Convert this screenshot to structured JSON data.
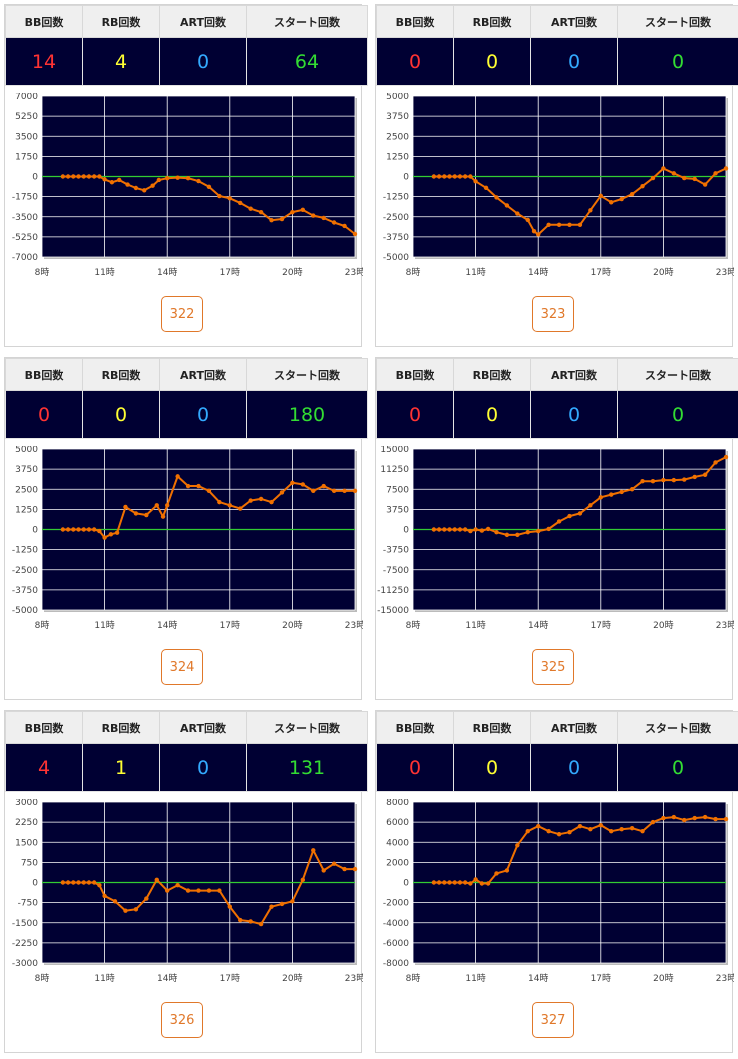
{
  "headers": {
    "bb": "BB回数",
    "rb": "RB回数",
    "art": "ART回数",
    "start": "スタート回数"
  },
  "colors": {
    "bb": "#ff3333",
    "rb": "#ffff33",
    "art": "#33aaff",
    "start": "#33dd33",
    "plot_bg": "#000033",
    "line": "#f07000",
    "zero_line": "#33cc33",
    "button": "#e0782a"
  },
  "machines": [
    {
      "number": "322",
      "bb": "14",
      "rb": "4",
      "art": "0",
      "start": "64",
      "chart_data": {
        "type": "line",
        "y_ticks": [
          "7000",
          "5250",
          "3500",
          "1750",
          "0",
          "-1750",
          "-3500",
          "-5250",
          "-7000"
        ],
        "x_ticks": [
          "8時",
          "11時",
          "14時",
          "17時",
          "20時",
          "23時"
        ],
        "ylim": [
          -7000,
          7000
        ],
        "xlim": [
          8,
          23
        ],
        "x": [
          9,
          9.25,
          9.5,
          9.75,
          10,
          10.25,
          10.5,
          10.75,
          11,
          11.35,
          11.7,
          12.1,
          12.5,
          12.9,
          13.3,
          13.6,
          14,
          14.5,
          15,
          15.5,
          16,
          16.5,
          17,
          17.5,
          18,
          18.5,
          19,
          19.5,
          20,
          20.5,
          21,
          21.5,
          22,
          22.5,
          23
        ],
        "y": [
          0,
          0,
          0,
          0,
          0,
          0,
          0,
          0,
          -250,
          -500,
          -300,
          -700,
          -1000,
          -1200,
          -800,
          -300,
          -150,
          -100,
          -150,
          -400,
          -900,
          -1700,
          -1900,
          -2300,
          -2800,
          -3100,
          -3800,
          -3700,
          -3100,
          -2900,
          -3400,
          -3600,
          -4000,
          -4300,
          -5000
        ],
        "grid": true,
        "legend": "none"
      }
    },
    {
      "number": "323",
      "bb": "0",
      "rb": "0",
      "art": "0",
      "start": "0",
      "chart_data": {
        "type": "line",
        "y_ticks": [
          "5000",
          "3750",
          "2500",
          "1250",
          "0",
          "-1250",
          "-2500",
          "-3750",
          "-5000"
        ],
        "x_ticks": [
          "8時",
          "11時",
          "14時",
          "17時",
          "20時",
          "23時"
        ],
        "ylim": [
          -5000,
          5000
        ],
        "xlim": [
          8,
          23
        ],
        "x": [
          9,
          9.25,
          9.5,
          9.75,
          10,
          10.25,
          10.5,
          10.75,
          11,
          11.5,
          12,
          12.5,
          13,
          13.5,
          13.8,
          14,
          14.5,
          15,
          15.5,
          16,
          16.5,
          17,
          17.5,
          18,
          18.5,
          19,
          19.5,
          20,
          20.5,
          21,
          21.5,
          22,
          22.5,
          23
        ],
        "y": [
          0,
          0,
          0,
          0,
          0,
          0,
          0,
          0,
          -300,
          -700,
          -1300,
          -1800,
          -2300,
          -2700,
          -3400,
          -3600,
          -3000,
          -3000,
          -3000,
          -3000,
          -2100,
          -1200,
          -1600,
          -1400,
          -1100,
          -600,
          -100,
          500,
          200,
          -100,
          -150,
          -500,
          200,
          500
        ],
        "grid": true,
        "legend": "none"
      }
    },
    {
      "number": "324",
      "bb": "0",
      "rb": "0",
      "art": "0",
      "start": "180",
      "chart_data": {
        "type": "line",
        "y_ticks": [
          "5000",
          "3750",
          "2500",
          "1250",
          "0",
          "-1250",
          "-2500",
          "-3750",
          "-5000"
        ],
        "x_ticks": [
          "8時",
          "11時",
          "14時",
          "17時",
          "20時",
          "23時"
        ],
        "ylim": [
          -5000,
          5000
        ],
        "xlim": [
          8,
          23
        ],
        "x": [
          9,
          9.25,
          9.5,
          9.75,
          10,
          10.25,
          10.5,
          10.75,
          11,
          11.3,
          11.6,
          12,
          12.5,
          13,
          13.5,
          13.8,
          14,
          14.5,
          15,
          15.5,
          16,
          16.5,
          17,
          17.5,
          18,
          18.5,
          19,
          19.5,
          20,
          20.5,
          21,
          21.5,
          22,
          22.5,
          23
        ],
        "y": [
          0,
          0,
          0,
          0,
          0,
          0,
          0,
          -100,
          -500,
          -300,
          -200,
          1400,
          1000,
          900,
          1500,
          800,
          1500,
          3300,
          2700,
          2700,
          2400,
          1700,
          1500,
          1300,
          1800,
          1900,
          1700,
          2300,
          2900,
          2800,
          2400,
          2700,
          2400,
          2400,
          2400
        ],
        "grid": true,
        "legend": "none"
      }
    },
    {
      "number": "325",
      "bb": "0",
      "rb": "0",
      "art": "0",
      "start": "0",
      "chart_data": {
        "type": "line",
        "y_ticks": [
          "15000",
          "11250",
          "7500",
          "3750",
          "0",
          "-3750",
          "-7500",
          "-11250",
          "-15000"
        ],
        "x_ticks": [
          "8時",
          "11時",
          "14時",
          "17時",
          "20時",
          "23時"
        ],
        "ylim": [
          -15000,
          15000
        ],
        "xlim": [
          8,
          23
        ],
        "x": [
          9,
          9.25,
          9.5,
          9.75,
          10,
          10.25,
          10.5,
          10.75,
          11,
          11.3,
          11.6,
          12,
          12.5,
          13,
          13.5,
          14,
          14.5,
          15,
          15.5,
          16,
          16.5,
          17,
          17.5,
          18,
          18.5,
          19,
          19.5,
          20,
          20.5,
          21,
          21.5,
          22,
          22.5,
          23
        ],
        "y": [
          0,
          0,
          0,
          0,
          0,
          0,
          0,
          -300,
          0,
          -200,
          100,
          -500,
          -1000,
          -1000,
          -500,
          -300,
          100,
          1500,
          2500,
          3000,
          4500,
          6000,
          6500,
          7000,
          7500,
          9000,
          9000,
          9200,
          9200,
          9300,
          9800,
          10200,
          12500,
          13500
        ],
        "grid": true,
        "legend": "none"
      }
    },
    {
      "number": "326",
      "bb": "4",
      "rb": "1",
      "art": "0",
      "start": "131",
      "chart_data": {
        "type": "line",
        "y_ticks": [
          "3000",
          "2250",
          "1500",
          "750",
          "0",
          "-750",
          "-1500",
          "-2250",
          "-3000"
        ],
        "x_ticks": [
          "8時",
          "11時",
          "14時",
          "17時",
          "20時",
          "23時"
        ],
        "ylim": [
          -3000,
          3000
        ],
        "xlim": [
          8,
          23
        ],
        "x": [
          9,
          9.25,
          9.5,
          9.75,
          10,
          10.25,
          10.5,
          10.75,
          11,
          11.5,
          12,
          12.5,
          13,
          13.5,
          14,
          14.5,
          15,
          15.5,
          16,
          16.5,
          17,
          17.5,
          18,
          18.5,
          19,
          19.5,
          20,
          20.5,
          21,
          21.5,
          22,
          22.5,
          23
        ],
        "y": [
          0,
          0,
          0,
          0,
          0,
          0,
          0,
          -100,
          -500,
          -700,
          -1050,
          -1000,
          -600,
          100,
          -300,
          -100,
          -300,
          -300,
          -300,
          -300,
          -900,
          -1400,
          -1450,
          -1550,
          -900,
          -800,
          -700,
          100,
          1200,
          450,
          700,
          500,
          500
        ],
        "grid": true,
        "legend": "none"
      }
    },
    {
      "number": "327",
      "bb": "0",
      "rb": "0",
      "art": "0",
      "start": "0",
      "chart_data": {
        "type": "line",
        "y_ticks": [
          "8000",
          "6000",
          "4000",
          "2000",
          "0",
          "-2000",
          "-4000",
          "-6000",
          "-8000"
        ],
        "x_ticks": [
          "8時",
          "11時",
          "14時",
          "17時",
          "20時",
          "23時"
        ],
        "ylim": [
          -8000,
          8000
        ],
        "xlim": [
          8,
          23
        ],
        "x": [
          9,
          9.25,
          9.5,
          9.75,
          10,
          10.25,
          10.5,
          10.75,
          11,
          11.3,
          11.6,
          12,
          12.5,
          13,
          13.5,
          14,
          14.5,
          15,
          15.5,
          16,
          16.5,
          17,
          17.5,
          18,
          18.5,
          19,
          19.5,
          20,
          20.5,
          21,
          21.5,
          22,
          22.5,
          23
        ],
        "y": [
          0,
          0,
          0,
          0,
          0,
          0,
          0,
          -100,
          300,
          -100,
          -100,
          900,
          1200,
          3700,
          5100,
          5600,
          5100,
          4800,
          5000,
          5600,
          5300,
          5700,
          5100,
          5300,
          5400,
          5100,
          6000,
          6400,
          6500,
          6200,
          6400,
          6500,
          6300,
          6300
        ],
        "grid": true,
        "legend": "none"
      }
    }
  ]
}
